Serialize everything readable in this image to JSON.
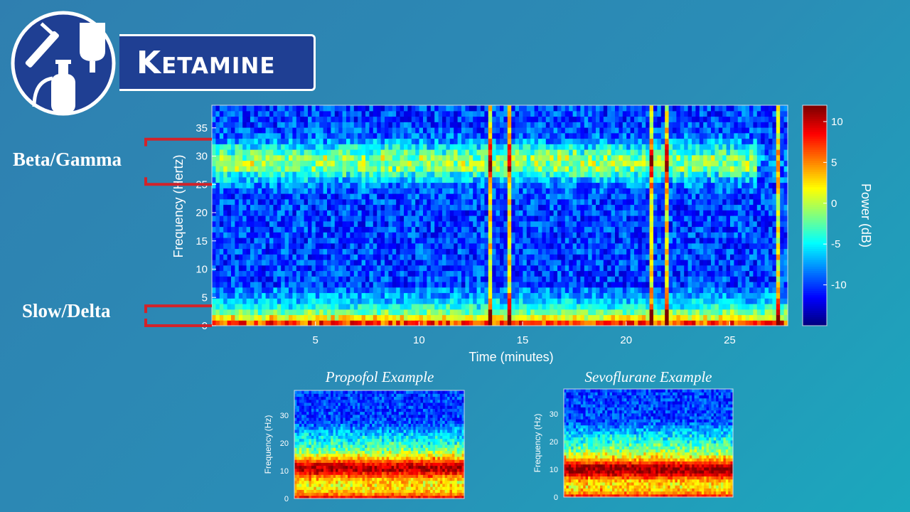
{
  "header": {
    "title": "Ketamine",
    "icons": [
      "syringe-icon",
      "iv-bag-icon",
      "gas-cylinder-icon"
    ]
  },
  "bands": {
    "beta_gamma": "Beta/Gamma",
    "slow_delta": "Slow/Delta"
  },
  "colors": {
    "title_bg": "#1f3f93",
    "band_marker": "#d2232a"
  },
  "chart_data": [
    {
      "id": "main",
      "type": "heatmap",
      "title": "",
      "xlabel": "Time (minutes)",
      "ylabel": "Frequency (Hertz)",
      "xlim": [
        0,
        27.8
      ],
      "ylim": [
        0,
        39
      ],
      "xticks": [
        5,
        10,
        15,
        20,
        25
      ],
      "yticks": [
        0,
        5,
        10,
        15,
        20,
        25,
        30,
        35
      ],
      "colorbar": {
        "label": "Power (dB)",
        "range": [
          -15,
          12
        ],
        "ticks": [
          -10,
          -5,
          0,
          5,
          10
        ]
      },
      "bands_marked": [
        [
          0,
          3.5
        ],
        [
          25,
          33
        ]
      ],
      "features": {
        "slow_delta_power_db": 9,
        "beta_gamma_power_db": 0,
        "beta_gamma_center_hz": 29,
        "background_power_db": -10,
        "artifact_times_min": [
          13.3,
          14.3,
          20.1,
          21.2,
          21.9,
          27.2
        ]
      }
    },
    {
      "id": "propofol",
      "type": "heatmap",
      "title": "Propofol Example",
      "ylabel": "Frequency (Hz)",
      "ylim": [
        0,
        39
      ],
      "yticks": [
        0,
        10,
        20,
        30
      ],
      "features": {
        "alpha_peak_hz": 11,
        "slow_power_db": 10,
        "alpha_power_db": 10,
        "high_freq_power_db": -10
      }
    },
    {
      "id": "sevoflurane",
      "type": "heatmap",
      "title": "Sevoflurane Example",
      "ylabel": "Frequency (Hz)",
      "ylim": [
        0,
        39
      ],
      "yticks": [
        0,
        10,
        20,
        30
      ],
      "features": {
        "alpha_peak_hz": 10,
        "slow_power_db": 9,
        "alpha_power_db": 11,
        "high_freq_power_db": -10
      }
    }
  ]
}
